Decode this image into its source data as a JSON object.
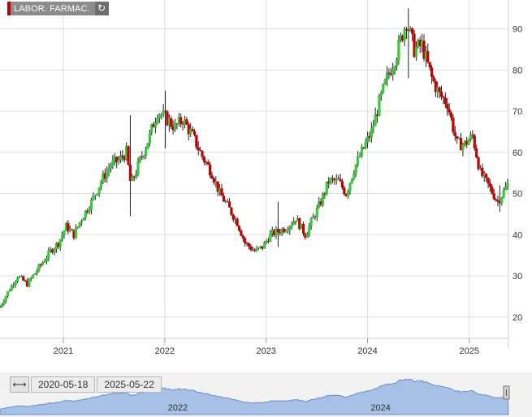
{
  "ticker": {
    "label": "LABOR. FARMAC.",
    "refresh_icon": "refresh-icon"
  },
  "navigator": {
    "range_icon": "range-arrows-icon",
    "start_date": "2020-05-18",
    "end_date": "2025-05-22",
    "year_labels": [
      "2022",
      "2024"
    ]
  },
  "chart_data": {
    "type": "candlestick",
    "title": "",
    "x_axis": {
      "type": "date",
      "range": [
        "2020-05-18",
        "2025-05-22"
      ],
      "tick_labels": [
        "2021",
        "2022",
        "2023",
        "2024",
        "2025"
      ]
    },
    "y_axis": {
      "range": [
        17,
        97
      ],
      "position": "right",
      "tick_values": [
        20,
        30,
        40,
        50,
        60,
        70,
        80,
        90
      ]
    },
    "grid": true,
    "colors": {
      "up": "#3cc83c",
      "down": "#c00000",
      "wick": "#222222",
      "grid": "#dddddd",
      "navigator_fill": "#a7c1e6",
      "navigator_line": "#6b8cc8"
    },
    "close_path": [
      [
        "2020-05-18",
        22.5
      ],
      [
        "2020-06-15",
        26
      ],
      [
        "2020-07-20",
        30
      ],
      [
        "2020-08-24",
        28
      ],
      [
        "2020-10-05",
        32
      ],
      [
        "2020-11-16",
        36
      ],
      [
        "2020-12-14",
        38
      ],
      [
        "2021-01-11",
        42
      ],
      [
        "2021-02-08",
        40
      ],
      [
        "2021-03-08",
        44
      ],
      [
        "2021-04-12",
        48
      ],
      [
        "2021-05-17",
        53
      ],
      [
        "2021-06-21",
        57
      ],
      [
        "2021-07-19",
        58
      ],
      [
        "2021-08-16",
        60
      ],
      [
        "2021-09-01",
        52
      ],
      [
        "2021-10-04",
        58
      ],
      [
        "2021-11-08",
        64
      ],
      [
        "2021-12-06",
        70
      ],
      [
        "2022-01-10",
        68
      ],
      [
        "2022-02-07",
        66
      ],
      [
        "2022-03-07",
        68
      ],
      [
        "2022-04-11",
        64
      ],
      [
        "2022-05-16",
        59
      ],
      [
        "2022-06-20",
        55
      ],
      [
        "2022-07-18",
        50
      ],
      [
        "2022-08-15",
        47
      ],
      [
        "2022-09-19",
        43
      ],
      [
        "2022-10-17",
        38
      ],
      [
        "2022-11-21",
        36
      ],
      [
        "2022-12-19",
        37
      ],
      [
        "2023-01-16",
        40
      ],
      [
        "2023-02-20",
        41
      ],
      [
        "2023-03-20",
        42
      ],
      [
        "2023-04-17",
        44
      ],
      [
        "2023-05-22",
        40
      ],
      [
        "2023-06-19",
        44
      ],
      [
        "2023-07-17",
        48
      ],
      [
        "2023-08-14",
        53
      ],
      [
        "2023-09-18",
        53
      ],
      [
        "2023-10-16",
        50
      ],
      [
        "2023-11-13",
        56
      ],
      [
        "2023-12-11",
        60
      ],
      [
        "2024-01-15",
        65
      ],
      [
        "2024-02-12",
        72
      ],
      [
        "2024-03-11",
        78
      ],
      [
        "2024-04-15",
        84
      ],
      [
        "2024-05-20",
        92
      ],
      [
        "2024-06-17",
        85
      ],
      [
        "2024-07-15",
        86
      ],
      [
        "2024-08-19",
        78
      ],
      [
        "2024-09-16",
        74
      ],
      [
        "2024-10-14",
        72
      ],
      [
        "2024-11-18",
        62
      ],
      [
        "2024-12-16",
        62
      ],
      [
        "2025-01-13",
        64
      ],
      [
        "2025-02-10",
        55
      ],
      [
        "2025-03-10",
        52
      ],
      [
        "2025-04-14",
        48
      ],
      [
        "2025-05-22",
        52.5
      ]
    ],
    "spikes": [
      {
        "date": "2021-09-01",
        "low": 44.5,
        "high": 69
      },
      {
        "date": "2022-01-03",
        "low": 61,
        "high": 75
      },
      {
        "date": "2023-02-13",
        "low": 37,
        "high": 48
      },
      {
        "date": "2024-05-27",
        "low": 78,
        "high": 95
      },
      {
        "date": "2025-04-21",
        "low": 45.5,
        "high": 52
      }
    ]
  }
}
